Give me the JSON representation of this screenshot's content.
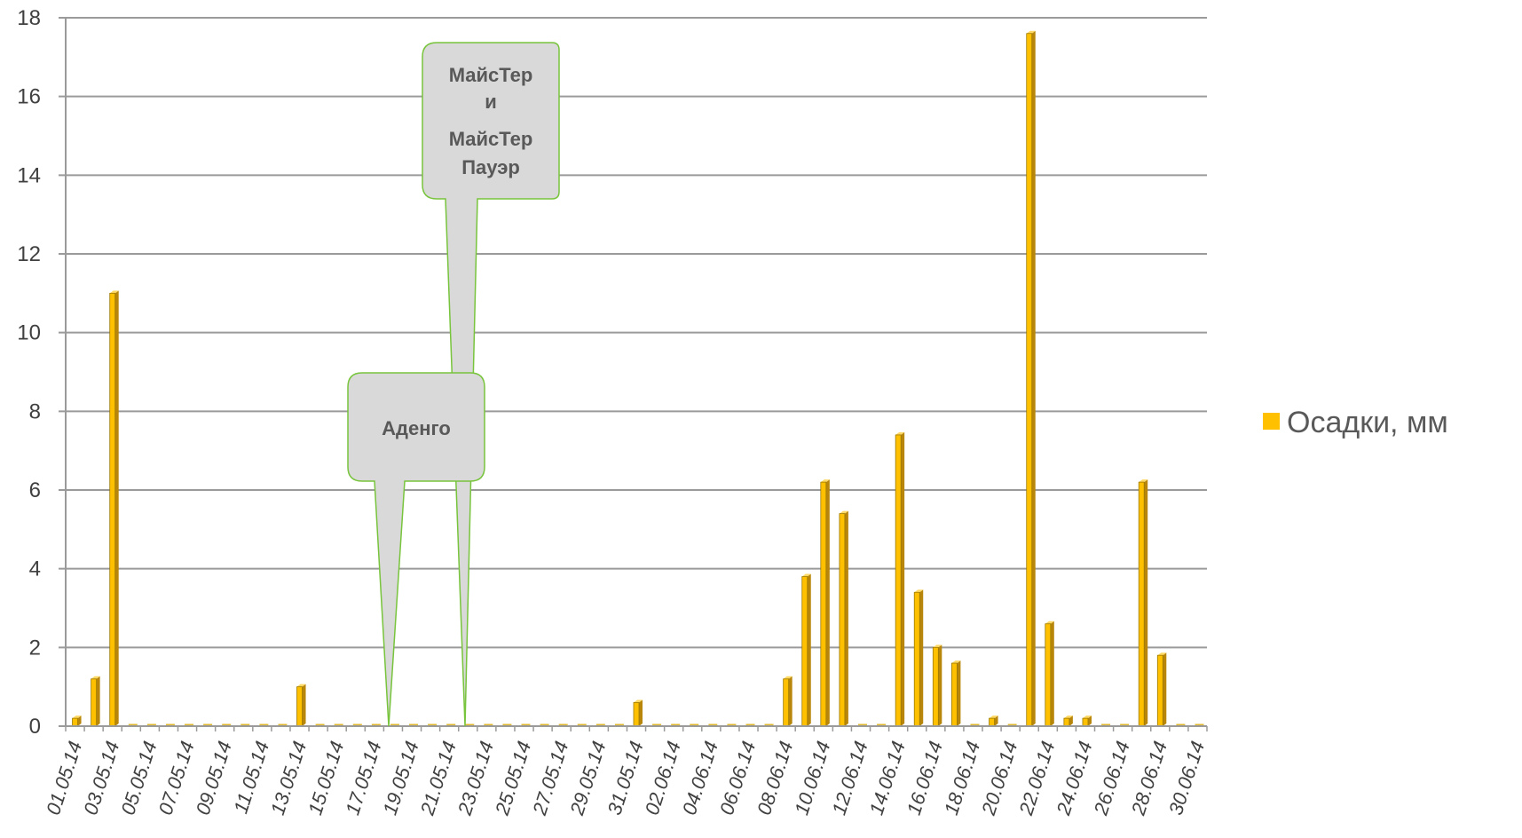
{
  "chart_data": {
    "type": "bar",
    "categories": [
      "01.05.14",
      "02.05.14",
      "03.05.14",
      "04.05.14",
      "05.05.14",
      "06.05.14",
      "07.05.14",
      "08.05.14",
      "09.05.14",
      "10.05.14",
      "11.05.14",
      "12.05.14",
      "13.05.14",
      "14.05.14",
      "15.05.14",
      "16.05.14",
      "17.05.14",
      "18.05.14",
      "19.05.14",
      "20.05.14",
      "21.05.14",
      "22.05.14",
      "23.05.14",
      "24.05.14",
      "25.05.14",
      "26.05.14",
      "27.05.14",
      "28.05.14",
      "29.05.14",
      "30.05.14",
      "31.05.14",
      "01.06.14",
      "02.06.14",
      "03.06.14",
      "04.06.14",
      "05.06.14",
      "06.06.14",
      "07.06.14",
      "08.06.14",
      "09.06.14",
      "10.06.14",
      "11.06.14",
      "12.06.14",
      "13.06.14",
      "14.06.14",
      "15.06.14",
      "16.06.14",
      "17.06.14",
      "18.06.14",
      "19.06.14",
      "20.06.14",
      "21.06.14",
      "22.06.14",
      "23.06.14",
      "24.06.14",
      "25.06.14",
      "26.06.14",
      "27.06.14",
      "28.06.14",
      "29.06.14",
      "30.06.14"
    ],
    "x_tick_labels": [
      "01.05.14",
      "03.05.14",
      "05.05.14",
      "07.05.14",
      "09.05.14",
      "11.05.14",
      "13.05.14",
      "15.05.14",
      "17.05.14",
      "19.05.14",
      "21.05.14",
      "23.05.14",
      "25.05.14",
      "27.05.14",
      "29.05.14",
      "31.05.14",
      "02.06.14",
      "04.06.14",
      "06.06.14",
      "08.06.14",
      "10.06.14",
      "12.06.14",
      "14.06.14",
      "16.06.14",
      "18.06.14",
      "20.06.14",
      "22.06.14",
      "24.06.14",
      "26.06.14",
      "28.06.14",
      "30.06.14"
    ],
    "series": [
      {
        "name": "Осадки, мм",
        "color": "#FFC000",
        "values": [
          0.2,
          1.2,
          11,
          0,
          0,
          0,
          0,
          0,
          0,
          0,
          0,
          0,
          1,
          0,
          0,
          0,
          0,
          0,
          0,
          0,
          0,
          0,
          0,
          0,
          0,
          0,
          0,
          0,
          0,
          0,
          0.6,
          0,
          0,
          0,
          0,
          0,
          0,
          0,
          1.2,
          3.8,
          6.2,
          5.4,
          0,
          0,
          7.4,
          3.4,
          2,
          1.6,
          0,
          0.2,
          0,
          17.6,
          2.6,
          0.2,
          0.2,
          0,
          0,
          6.2,
          1.8,
          0,
          0
        ]
      }
    ],
    "y_ticks": [
      0,
      2,
      4,
      6,
      8,
      10,
      12,
      14,
      16,
      18
    ],
    "ylim": [
      0,
      18
    ],
    "grid": true,
    "legend": "right",
    "annotations": [
      {
        "text_lines": [
          "МайсТер",
          "и",
          "МайсТер",
          "Пауэр"
        ],
        "points_to": "22.05.14"
      },
      {
        "text_lines": [
          "Аденго"
        ],
        "points_to": "18.05.14"
      }
    ]
  }
}
